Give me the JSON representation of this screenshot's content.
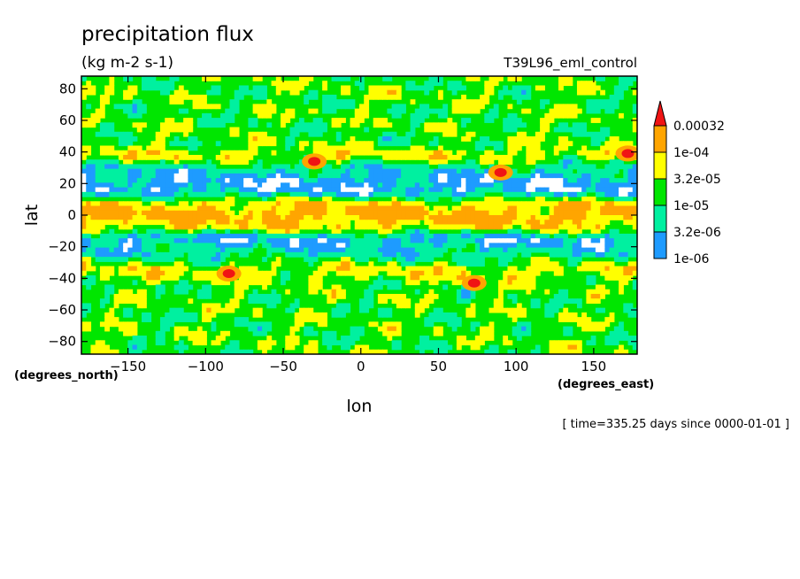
{
  "chart_data": {
    "type": "heatmap",
    "title": "precipitation flux",
    "subtitle": "(kg m-2 s-1)",
    "run_label": "T39L96_eml_control",
    "xlabel": "lon",
    "ylabel": "lat",
    "x_units": "(degrees_east)",
    "y_units": "(degrees_north)",
    "time_label": "[ time=335.25 days since 0000-01-01 ]",
    "xlim": [
      -180,
      178
    ],
    "ylim": [
      -88,
      88
    ],
    "x_ticks": [
      -150,
      -100,
      -50,
      0,
      50,
      100,
      150
    ],
    "y_ticks": [
      -80,
      -60,
      -40,
      -20,
      0,
      20,
      40,
      60,
      80
    ],
    "legend": {
      "levels": [
        "1e-06",
        "3.2e-06",
        "1e-05",
        "3.2e-05",
        "1e-04",
        "0.00032"
      ],
      "colors": [
        "#ffffff",
        "#1e9bff",
        "#00f0a0",
        "#00e600",
        "#ffff00",
        "#ffa500",
        "#f01414"
      ],
      "placement": "right"
    },
    "zonal_profile": {
      "lat": [
        -88,
        -75,
        -60,
        -45,
        -35,
        -25,
        -15,
        -8,
        0,
        8,
        15,
        22,
        30,
        38,
        45,
        55,
        65,
        75,
        88
      ],
      "class": [
        3,
        3,
        3,
        3,
        4,
        2,
        1,
        4,
        5,
        4,
        1,
        1,
        2,
        4,
        3,
        3,
        3,
        3,
        3
      ]
    }
  }
}
